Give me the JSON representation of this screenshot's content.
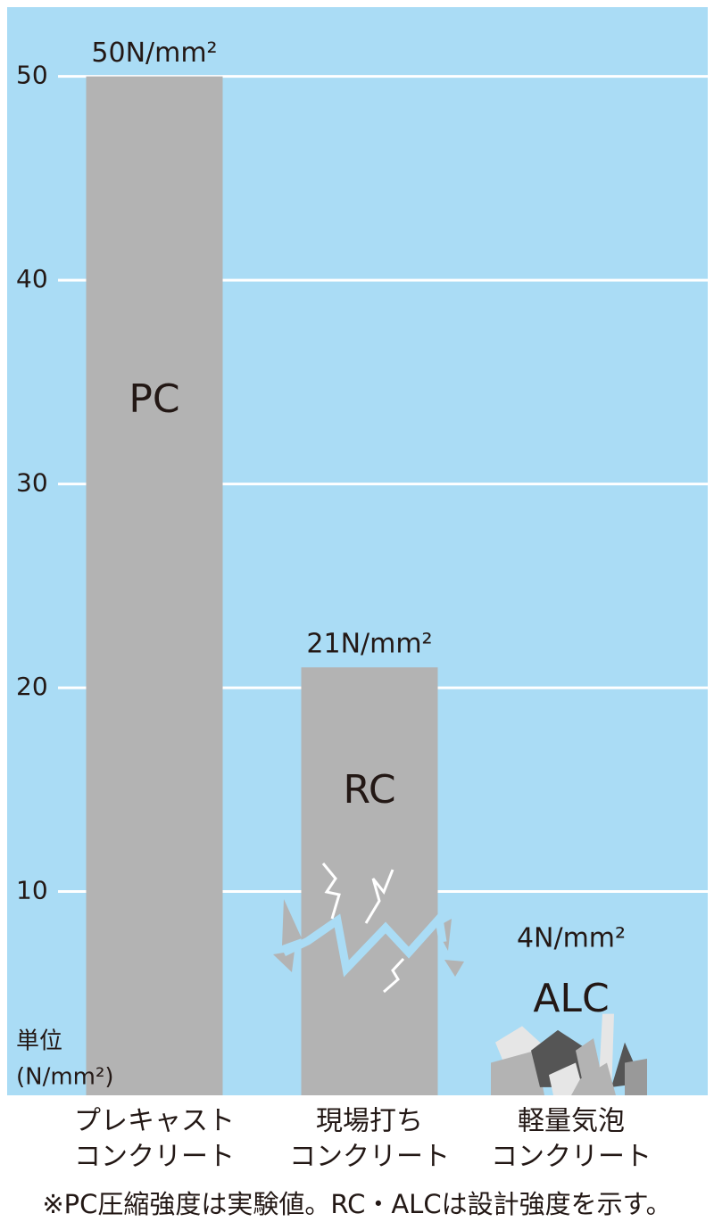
{
  "chart_data": {
    "type": "bar",
    "categories": [
      [
        "プレキャスト",
        "コンクリート"
      ],
      [
        "現場打ち",
        "コンクリート"
      ],
      [
        "軽量気泡",
        "コンクリート"
      ]
    ],
    "bar_labels": [
      "PC",
      "RC",
      "ALC"
    ],
    "values": [
      50,
      21,
      4
    ],
    "value_labels": [
      "50N/mm²",
      "21N/mm²",
      "4N/mm²"
    ],
    "color": "#b3b3b3",
    "background": "#aadcf5",
    "ylim": [
      0,
      53.4
    ],
    "yticks": [
      10,
      20,
      30,
      40,
      50
    ],
    "grid": true,
    "ylabel_lines": [
      "単位",
      "(N/mm²)"
    ],
    "note": "※PC圧縮強度は実験値。RC・ALCは設計強度を示す。"
  }
}
